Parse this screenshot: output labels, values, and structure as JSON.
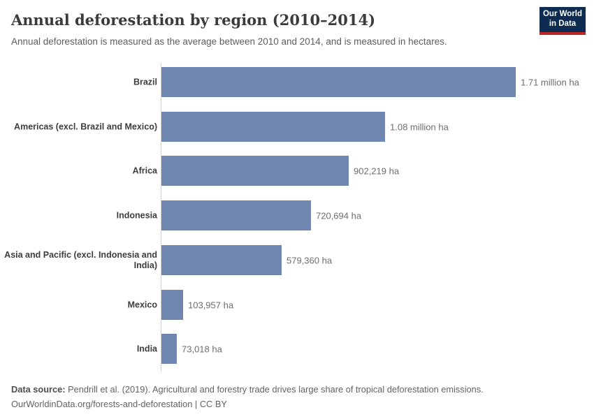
{
  "header": {
    "title": "Annual deforestation by region (2010–2014)",
    "subtitle": "Annual deforestation is measured as the average between 2010 and 2014, and is measured in hectares.",
    "logo": {
      "line1": "Our World",
      "line2": "in Data"
    }
  },
  "chart_data": {
    "type": "bar",
    "orientation": "horizontal",
    "title": "Annual deforestation by region (2010–2014)",
    "unit": "hectares",
    "categories": [
      "Brazil",
      "Americas (excl. Brazil and Mexico)",
      "Africa",
      "Indonesia",
      "Asia and Pacific (excl. Indonesia and India)",
      "Mexico",
      "India"
    ],
    "values": [
      1710000,
      1080000,
      902219,
      720694,
      579360,
      103957,
      73018
    ],
    "value_labels": [
      "1.71 million ha",
      "1.08 million ha",
      "902,219 ha",
      "720,694 ha",
      "579,360 ha",
      "103,957 ha",
      "73,018 ha"
    ],
    "xlim": [
      0,
      1710000
    ],
    "grid": false,
    "legend": false,
    "bar_color": "#6f87b0"
  },
  "footer": {
    "source_label": "Data source:",
    "source_text": " Pendrill et al. (2019). Agricultural and forestry trade drives large share of tropical deforestation emissions.",
    "link_line": "OurWorldinData.org/forests-and-deforestation | CC BY"
  },
  "colors": {
    "bar": "#6f87b0",
    "axis": "#cfcfcf",
    "title_text": "#3b3b3b",
    "subtitle_text": "#5e5e5e",
    "category_text": "#3d3d3d",
    "value_text": "#6e6e6e",
    "logo_navy": "#0e2c51",
    "logo_red": "#bc2723"
  }
}
